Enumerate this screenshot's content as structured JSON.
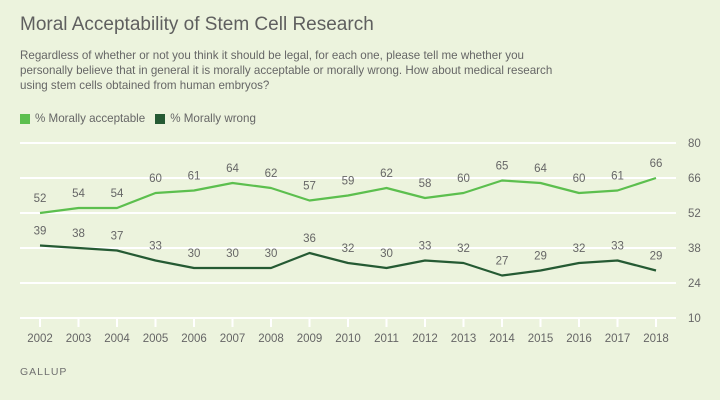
{
  "title": "Moral Acceptability of Stem Cell Research",
  "subtitle": "Regardless of whether or not you think it should be legal, for each one, please tell me whether you personally believe that in general it is morally acceptable or morally wrong. How about medical research using stem cells obtained from human embryos?",
  "footer": "GALLUP",
  "colors": {
    "acceptable": "#5cbf4e",
    "wrong": "#255a33",
    "background": "#ecf3dd",
    "grid": "#ffffff"
  },
  "chart_data": {
    "type": "line",
    "title": "Moral Acceptability of Stem Cell Research",
    "xlabel": "",
    "ylabel": "",
    "x": [
      "2002",
      "2003",
      "2004",
      "2005",
      "2006",
      "2007",
      "2008",
      "2009",
      "2010",
      "2011",
      "2012",
      "2013",
      "2014",
      "2015",
      "2016",
      "2017",
      "2018"
    ],
    "series": [
      {
        "name": "% Morally acceptable",
        "values": [
          52,
          54,
          54,
          60,
          61,
          64,
          62,
          57,
          59,
          62,
          58,
          60,
          65,
          64,
          60,
          61,
          66
        ]
      },
      {
        "name": "% Morally wrong",
        "values": [
          39,
          38,
          37,
          33,
          30,
          30,
          30,
          36,
          32,
          30,
          33,
          32,
          27,
          29,
          32,
          33,
          29
        ]
      }
    ],
    "yticks": [
      10,
      24,
      38,
      52,
      66,
      80
    ],
    "ylim": [
      10,
      80
    ],
    "grid": true,
    "legend_position": "top-left",
    "yaxis_position": "right"
  }
}
